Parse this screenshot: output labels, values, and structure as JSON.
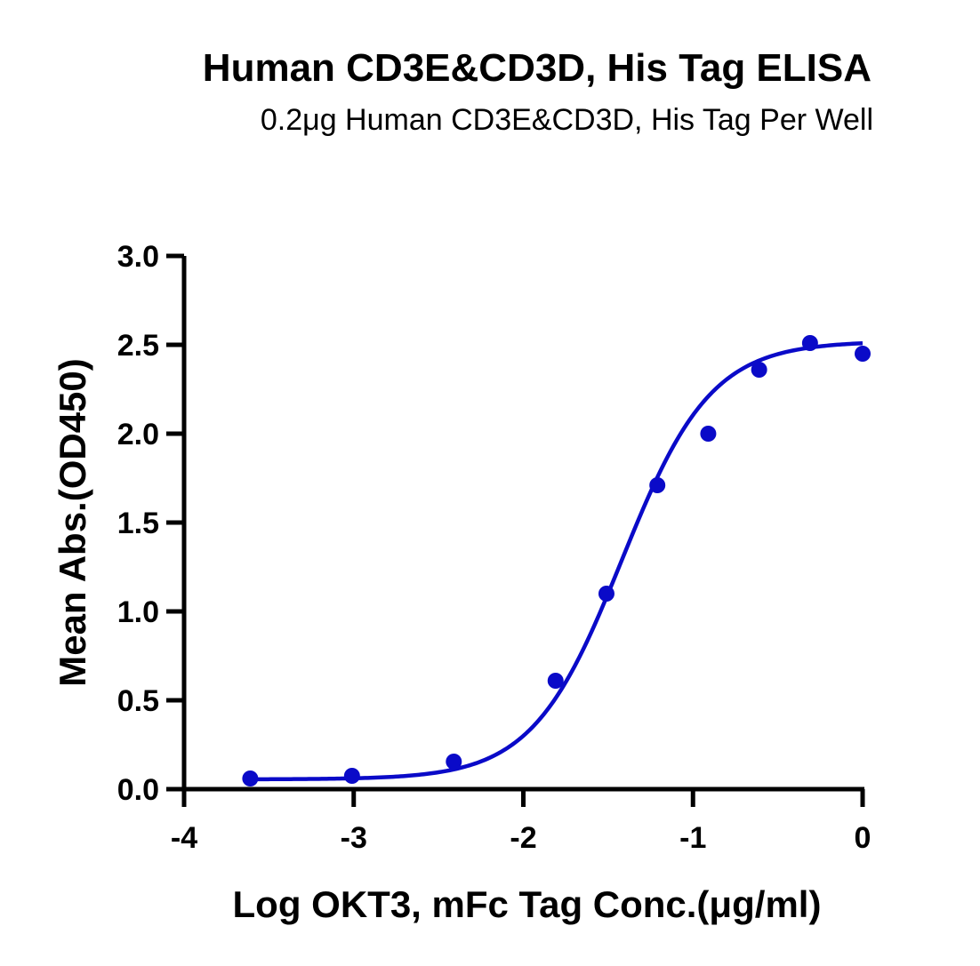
{
  "chart_data": {
    "type": "scatter",
    "title": "Human CD3E&CD3D, His Tag ELISA",
    "subtitle": "0.2μg Human CD3E&CD3D, His Tag Per Well",
    "xlabel": "Log OKT3, mFc Tag Conc.(μg/ml)",
    "ylabel": "Mean Abs.(OD450)",
    "xlim": [
      -4,
      0
    ],
    "ylim": [
      0,
      3.0
    ],
    "x_ticks": [
      "-4",
      "-3",
      "-2",
      "-1",
      "0"
    ],
    "y_ticks": [
      "0.0",
      "0.5",
      "1.0",
      "1.5",
      "2.0",
      "2.5",
      "3.0"
    ],
    "grid": false,
    "series": [
      {
        "x": [
          -3.61,
          -3.01,
          -2.41,
          -1.81,
          -1.51,
          -1.21,
          -0.91,
          -0.61,
          -0.31,
          0.0
        ],
        "y": [
          0.06,
          0.075,
          0.155,
          0.61,
          1.1,
          1.71,
          2.0,
          2.36,
          2.51,
          2.45
        ],
        "color": "#0a0ac8",
        "fit": "four-parameter logistic"
      }
    ],
    "fit_params": {
      "bottom": 0.055,
      "top": 2.52,
      "log_ec50": -1.42,
      "hill": 1.65
    }
  }
}
